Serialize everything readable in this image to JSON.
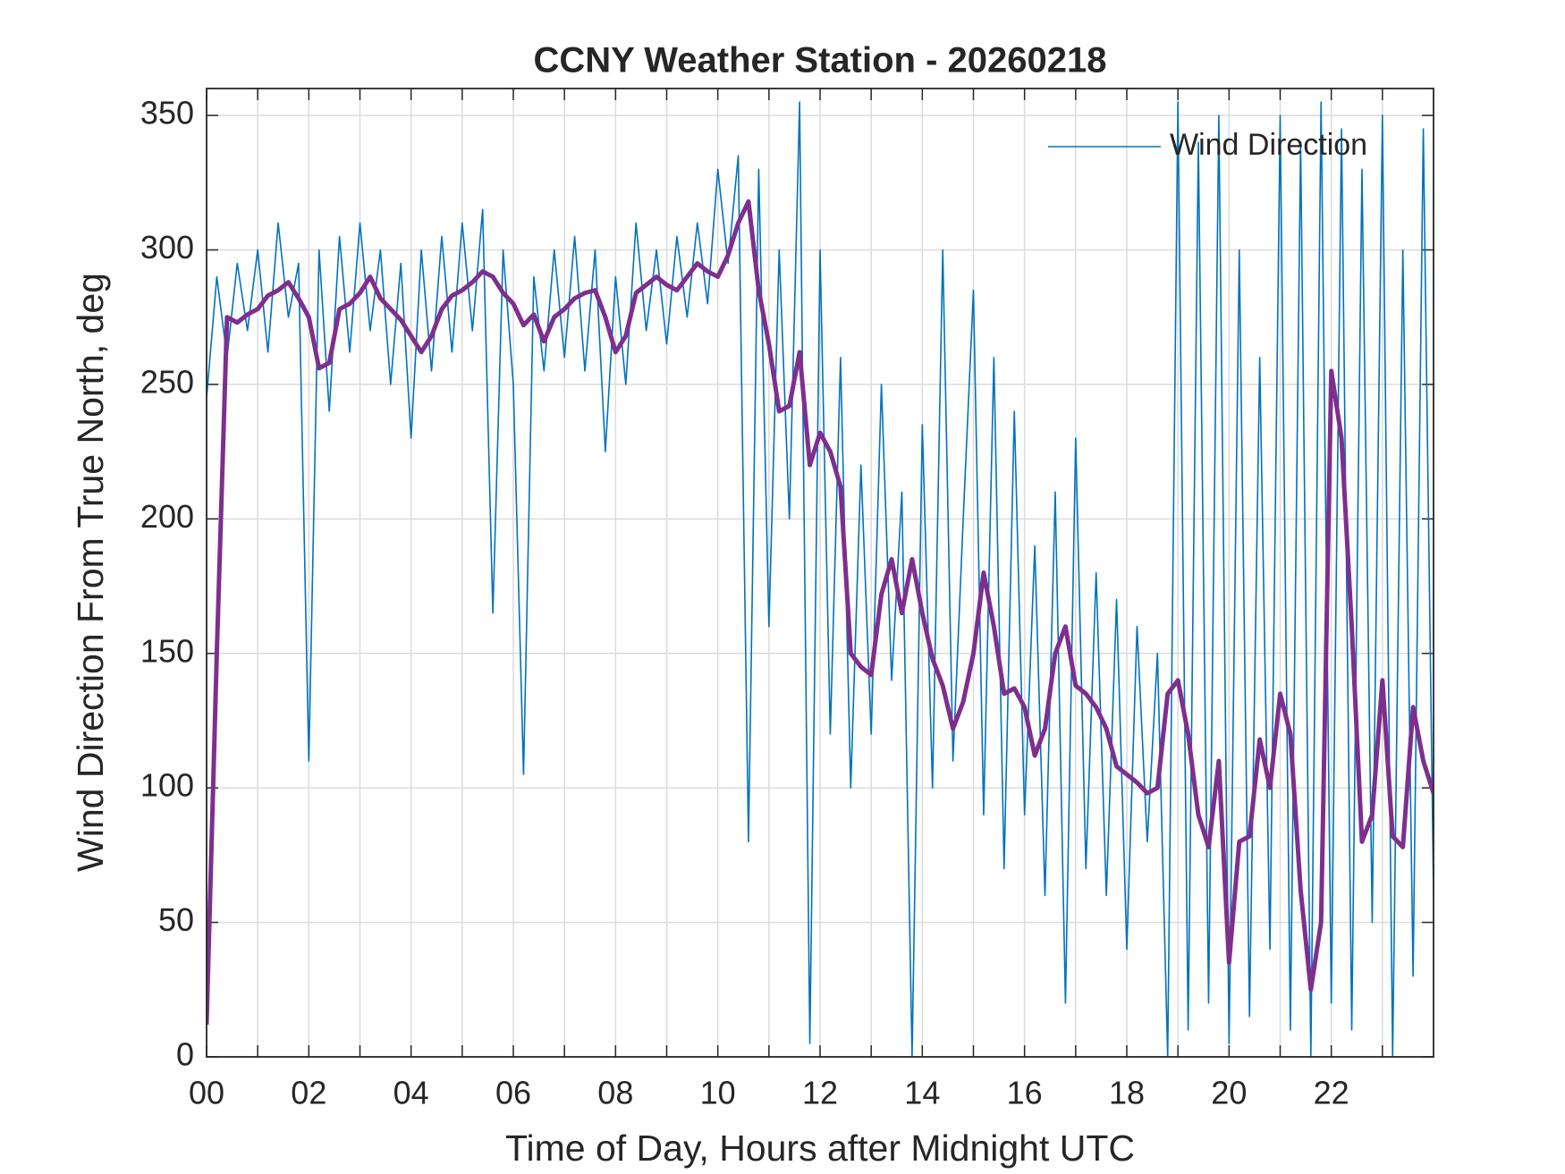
{
  "chart_data": {
    "type": "line",
    "title": "CCNY Weather Station - 20260218",
    "xlabel": "Time of Day, Hours after Midnight UTC",
    "ylabel": "Wind Direction From True North, deg",
    "xlim": [
      0,
      24
    ],
    "ylim": [
      0,
      360
    ],
    "xticks": [
      {
        "value": 0,
        "label": "00"
      },
      {
        "value": 2,
        "label": "02"
      },
      {
        "value": 4,
        "label": "04"
      },
      {
        "value": 6,
        "label": "06"
      },
      {
        "value": 8,
        "label": "08"
      },
      10,
      12,
      14,
      16,
      18,
      20,
      22
    ],
    "xminorticks": [
      1,
      3,
      5,
      7,
      9,
      11,
      13,
      15,
      17,
      19,
      21,
      23
    ],
    "yticks": [
      0,
      50,
      100,
      150,
      200,
      250,
      300,
      350
    ],
    "grid": true,
    "legend": "top-right",
    "x": [
      0,
      0.2,
      0.4,
      0.6,
      0.8,
      1,
      1.2,
      1.4,
      1.6,
      1.8,
      2,
      2.2,
      2.4,
      2.6,
      2.8,
      3,
      3.2,
      3.4,
      3.6,
      3.8,
      4,
      4.2,
      4.4,
      4.6,
      4.8,
      5,
      5.2,
      5.4,
      5.6,
      5.8,
      6,
      6.2,
      6.4,
      6.6,
      6.8,
      7,
      7.2,
      7.4,
      7.6,
      7.8,
      8,
      8.2,
      8.4,
      8.6,
      8.8,
      9,
      9.2,
      9.4,
      9.6,
      9.8,
      10,
      10.2,
      10.4,
      10.6,
      10.8,
      11,
      11.2,
      11.4,
      11.6,
      11.8,
      12,
      12.2,
      12.4,
      12.6,
      12.8,
      13,
      13.2,
      13.4,
      13.6,
      13.8,
      14,
      14.2,
      14.4,
      14.6,
      14.8,
      15,
      15.2,
      15.4,
      15.6,
      15.8,
      16,
      16.2,
      16.4,
      16.6,
      16.8,
      17,
      17.2,
      17.4,
      17.6,
      17.8,
      18,
      18.2,
      18.4,
      18.6,
      18.8,
      19,
      19.2,
      19.4,
      19.6,
      19.8,
      20,
      20.2,
      20.4,
      20.6,
      20.8,
      21,
      21.2,
      21.4,
      21.6,
      21.8,
      22,
      22.2,
      22.4,
      22.6,
      22.8,
      23,
      23.2,
      23.4,
      23.6,
      23.8,
      24
    ],
    "series": [
      {
        "name": "Wind Direction",
        "color": "#0072bd",
        "width": 1.6,
        "values": [
          245,
          290,
          260,
          295,
          270,
          300,
          262,
          310,
          275,
          295,
          110,
          300,
          240,
          305,
          262,
          310,
          270,
          300,
          250,
          295,
          230,
          300,
          255,
          305,
          262,
          310,
          270,
          315,
          165,
          300,
          250,
          105,
          290,
          255,
          300,
          260,
          305,
          255,
          300,
          225,
          290,
          250,
          310,
          270,
          300,
          265,
          305,
          275,
          310,
          280,
          330,
          295,
          335,
          80,
          330,
          160,
          300,
          200,
          355,
          5,
          300,
          120,
          260,
          100,
          220,
          120,
          250,
          140,
          210,
          0,
          235,
          100,
          300,
          110,
          200,
          285,
          90,
          260,
          70,
          240,
          90,
          190,
          60,
          210,
          20,
          230,
          70,
          180,
          60,
          170,
          40,
          160,
          80,
          150,
          0,
          355,
          10,
          340,
          20,
          350,
          5,
          300,
          15,
          260,
          40,
          350,
          10,
          340,
          0,
          355,
          20,
          345,
          10,
          330,
          50,
          350,
          0,
          300,
          30,
          345,
          60
        ]
      },
      {
        "color": "#7e2f8e",
        "width": 5,
        "values": [
          12,
          150,
          275,
          273,
          276,
          278,
          283,
          285,
          288,
          282,
          275,
          256,
          258,
          278,
          280,
          284,
          290,
          282,
          278,
          274,
          268,
          262,
          268,
          278,
          283,
          285,
          288,
          292,
          290,
          284,
          280,
          272,
          276,
          266,
          275,
          278,
          282,
          284,
          285,
          275,
          262,
          268,
          284,
          287,
          290,
          287,
          285,
          290,
          295,
          292,
          290,
          298,
          310,
          318,
          285,
          265,
          240,
          242,
          262,
          220,
          232,
          225,
          212,
          150,
          145,
          142,
          172,
          185,
          165,
          185,
          165,
          148,
          138,
          122,
          132,
          150,
          180,
          160,
          135,
          137,
          130,
          112,
          122,
          150,
          160,
          138,
          135,
          130,
          122,
          108,
          105,
          102,
          98,
          100,
          135,
          140,
          120,
          90,
          78,
          110,
          35,
          80,
          82,
          118,
          100,
          135,
          120,
          62,
          25,
          50,
          255,
          230,
          160,
          80,
          90,
          140,
          82,
          78,
          130,
          110,
          98
        ]
      }
    ]
  }
}
